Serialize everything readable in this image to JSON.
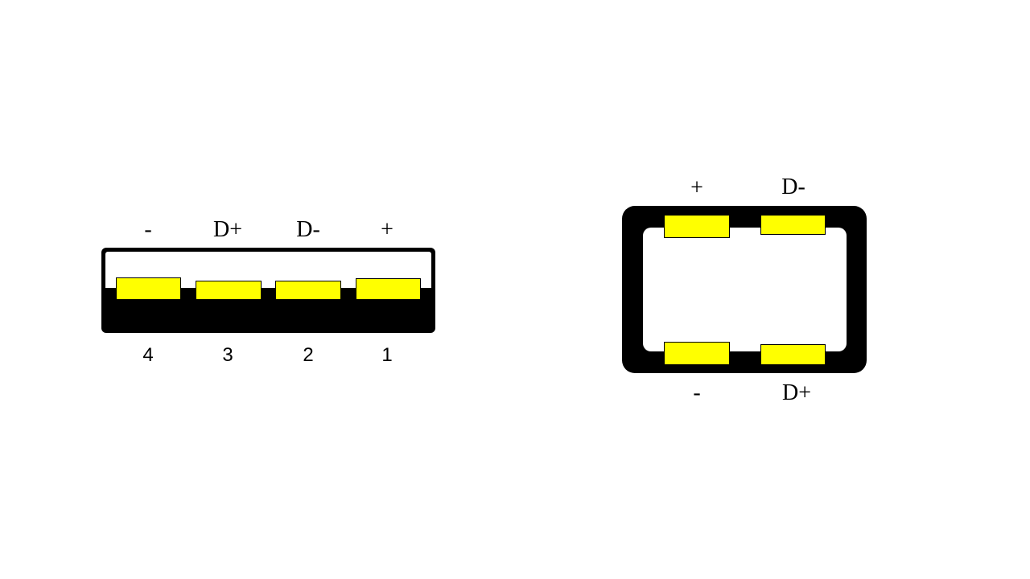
{
  "colors": {
    "housing": "#000000",
    "pin_fill": "#ffff00",
    "background": "#ffffff"
  },
  "usb_a": {
    "signal_labels": [
      "-",
      "D+",
      "D-",
      "+"
    ],
    "pin_numbers": [
      "4",
      "3",
      "2",
      "1"
    ]
  },
  "usb_b": {
    "top_labels": [
      "+",
      "D-"
    ],
    "bottom_labels": [
      "-",
      "D+"
    ]
  }
}
